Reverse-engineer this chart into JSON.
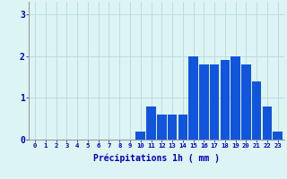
{
  "hours": [
    0,
    1,
    2,
    3,
    4,
    5,
    6,
    7,
    8,
    9,
    10,
    11,
    12,
    13,
    14,
    15,
    16,
    17,
    18,
    19,
    20,
    21,
    22,
    23
  ],
  "values": [
    0,
    0,
    0,
    0,
    0,
    0,
    0,
    0,
    0,
    0,
    0.2,
    0.8,
    0.6,
    0.6,
    0.6,
    2.0,
    1.8,
    1.8,
    1.9,
    2.0,
    1.8,
    1.4,
    0.8,
    0.2
  ],
  "bar_color": "#1155dd",
  "background_color": "#ddf4f4",
  "grid_color": "#bbdddd",
  "xlabel": "Précipitations 1h ( mm )",
  "xlabel_color": "#0000bb",
  "tick_color": "#0000bb",
  "ylabel_ticks": [
    0,
    1,
    2,
    3
  ],
  "ylim": [
    0,
    3.3
  ],
  "bar_width": 0.9
}
